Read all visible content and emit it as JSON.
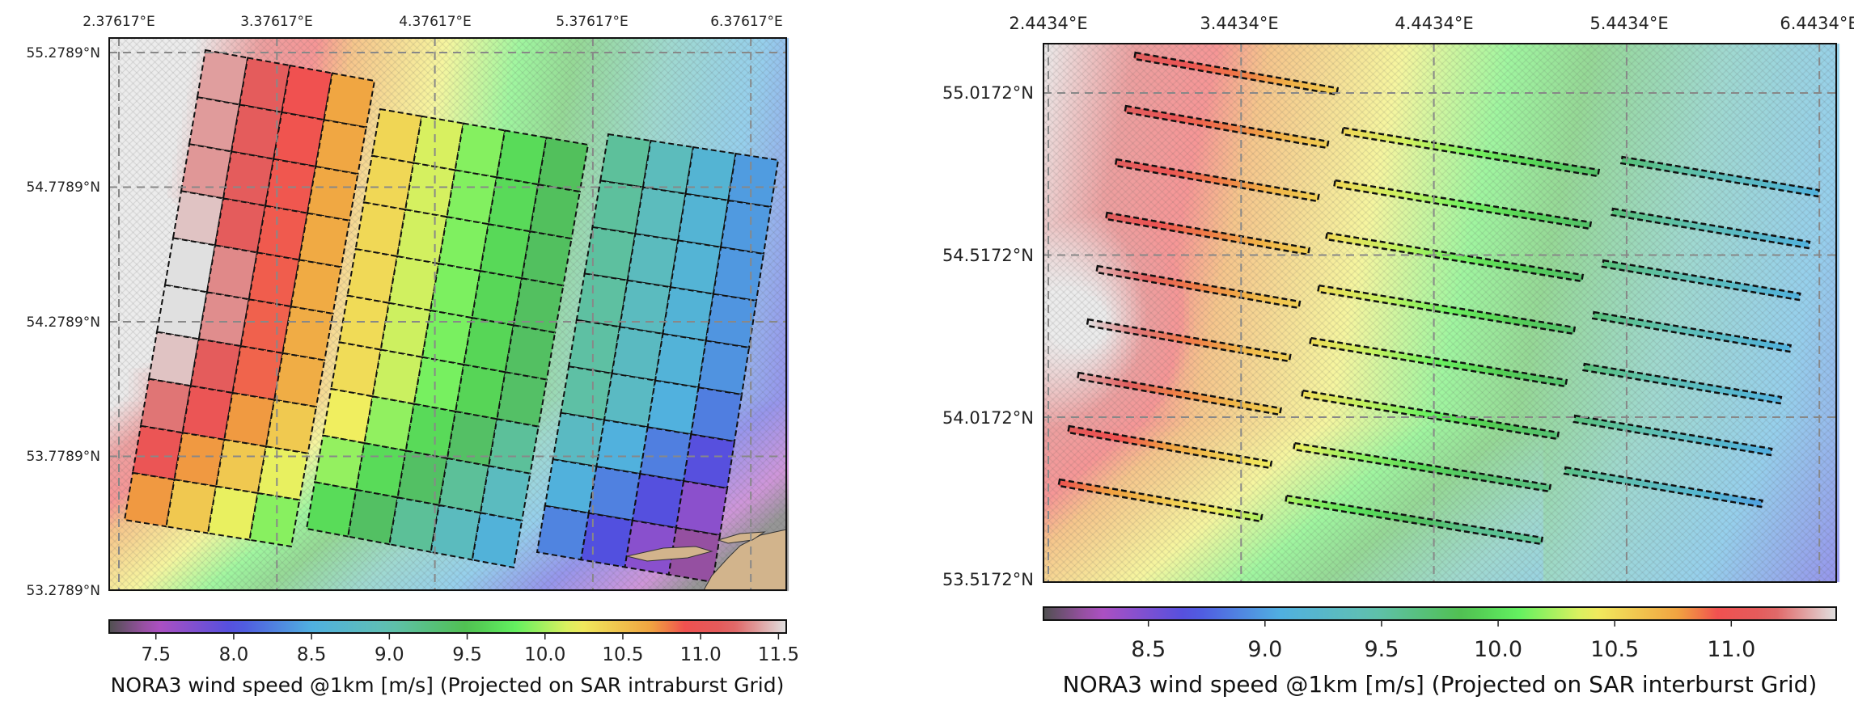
{
  "colormap": [
    "#505050",
    "#b050c0",
    "#5050e0",
    "#50b0e0",
    "#60c0b0",
    "#50c050",
    "#60f060",
    "#f0f060",
    "#f0a040",
    "#f05050",
    "#e06060",
    "#e0e0e0"
  ],
  "land_color": "#d2b48c",
  "left_map": {
    "lon_ticks": [
      "2.37617°E",
      "3.37617°E",
      "4.37617°E",
      "5.37617°E",
      "6.37617°E"
    ],
    "lat_ticks": [
      "55.2789°N",
      "54.7789°N",
      "54.2789°N",
      "53.7789°N",
      "53.2789°N"
    ],
    "grid": "dashed",
    "colorbar": {
      "ticks": [
        "7.5",
        "8.0",
        "8.5",
        "9.0",
        "9.5",
        "10.0",
        "10.5",
        "11.0",
        "11.5"
      ],
      "range": [
        7.2,
        11.55
      ],
      "label": "NORA3 wind speed @1km [m/s] (Projected on SAR intraburst Grid)"
    }
  },
  "right_map": {
    "lon_ticks": [
      "2.4434°E",
      "3.4434°E",
      "4.4434°E",
      "5.4434°E",
      "6.4434°E"
    ],
    "lat_ticks": [
      "55.0172°N",
      "54.5172°N",
      "54.0172°N",
      "53.5172°N"
    ],
    "grid": "dashed",
    "colorbar": {
      "ticks": [
        "8.5",
        "9.0",
        "9.5",
        "10.0",
        "10.5",
        "11.0"
      ],
      "range": [
        8.05,
        11.45
      ],
      "label": "NORA3 wind speed @1km [m/s] (Projected on SAR interburst Grid)"
    }
  }
}
